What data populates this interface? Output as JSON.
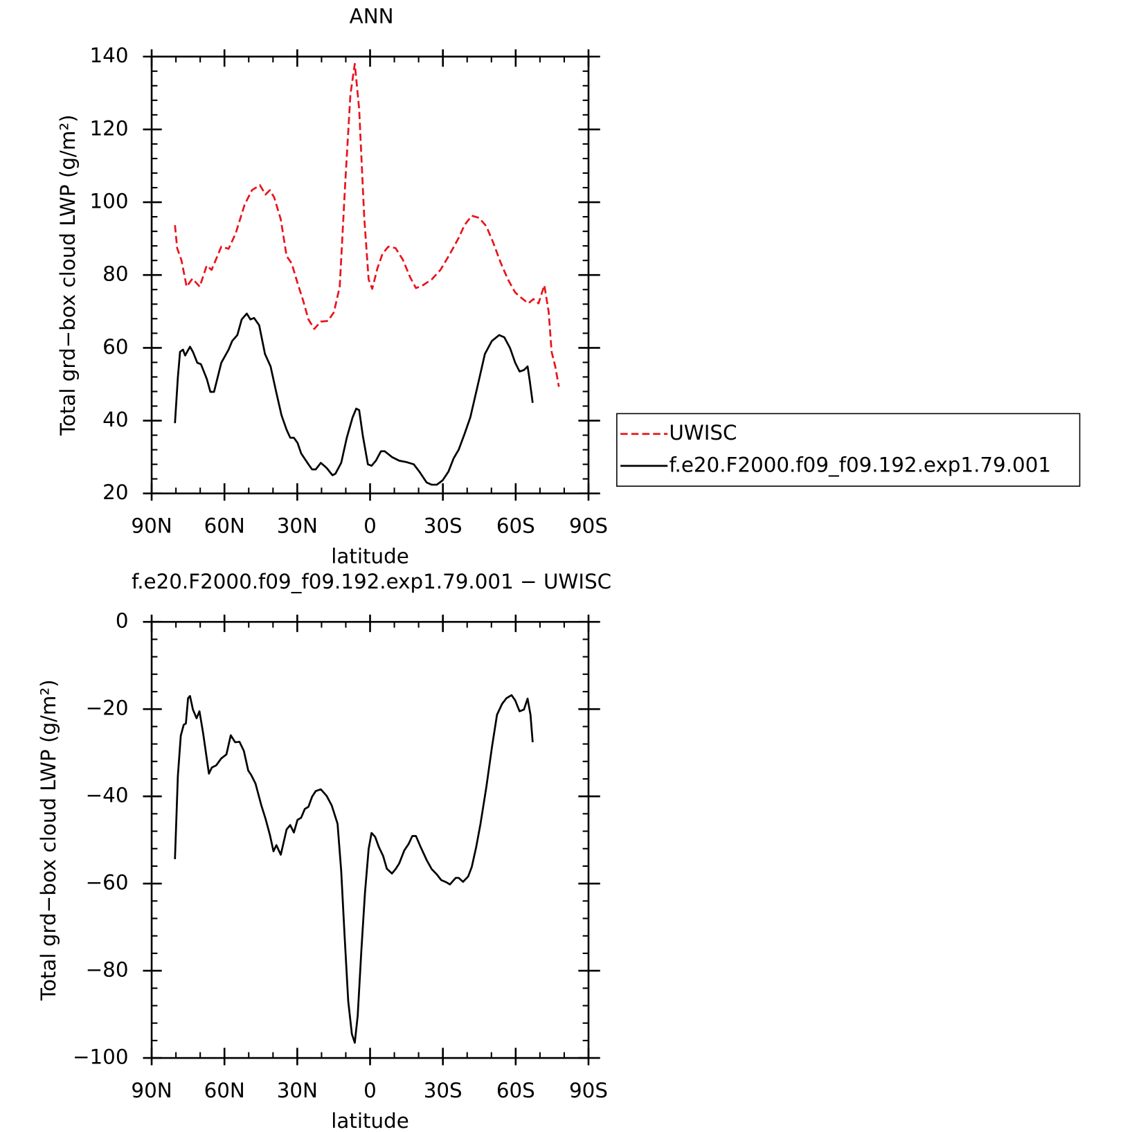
{
  "chart_data": [
    {
      "type": "line",
      "title": "ANN",
      "xlabel": "latitude",
      "ylabel": "Total grd−box cloud LWP (g/m²)",
      "xlim": [
        90,
        -90
      ],
      "xticks": [
        {
          "value": 90,
          "label": "90N"
        },
        {
          "value": 60,
          "label": "60N"
        },
        {
          "value": 30,
          "label": "30N"
        },
        0,
        {
          "value": -30,
          "label": "30S"
        },
        {
          "value": -60,
          "label": "60S"
        },
        {
          "value": -90,
          "label": "90S"
        }
      ],
      "ylim": [
        20,
        140
      ],
      "yticks": [
        20,
        40,
        60,
        80,
        100,
        120,
        140
      ],
      "legend": "outside-right",
      "series": [
        {
          "name": "UWISC",
          "color": "#e8141c",
          "dashed": true,
          "x": [
            80.4,
            79.5,
            77.7,
            75.6,
            73.2,
            70.2,
            67.3,
            65.3,
            61.3,
            58.3,
            55.4,
            51.7,
            48.7,
            45.4,
            43.1,
            41.3,
            39.5,
            36.8,
            34.4,
            32.3,
            29.9,
            27.5,
            25.4,
            23.0,
            20.3,
            17.3,
            14.9,
            12.5,
            10.2,
            8.1,
            6.3,
            4.5,
            2.4,
            0.6,
            -0.9,
            -3.0,
            -5.1,
            -7.5,
            -10.5,
            -13.5,
            -16.5,
            -18.9,
            -21.8,
            -25.4,
            -29.0,
            -32.9,
            -36.5,
            -38.9,
            -41.9,
            -44.9,
            -47.9,
            -50.8,
            -53.8,
            -56.8,
            -59.8,
            -62.2,
            -65.2,
            -67.3,
            -69.4,
            -71.8,
            -73.6,
            -74.8,
            -76.3,
            -77.8
          ],
          "values": [
            93.7,
            87.4,
            84,
            76.8,
            79,
            76.8,
            82.6,
            81.4,
            87.8,
            87.2,
            91.4,
            99.3,
            103.3,
            104.7,
            102.1,
            103.3,
            101.3,
            95.3,
            85.2,
            83.2,
            77.8,
            72.8,
            67.8,
            65.2,
            67.2,
            67.4,
            69.8,
            76.8,
            105.7,
            129.6,
            138,
            125.6,
            95.7,
            78.8,
            76.2,
            81.8,
            85.8,
            87.8,
            87.4,
            84.2,
            79.4,
            76.4,
            77.2,
            78.8,
            81.4,
            85.8,
            90.2,
            93.7,
            96.3,
            95.7,
            93.4,
            88.8,
            83.4,
            78.8,
            75.2,
            73.8,
            72.2,
            73.4,
            72.2,
            77.2,
            69.8,
            58.9,
            54.9,
            49.3
          ]
        },
        {
          "name": "f.e20.F2000.f09_f09.192.exp1.79.001",
          "color": "#000000",
          "dashed": false,
          "x": [
            80.4,
            79.2,
            78.3,
            77.1,
            76.2,
            74.2,
            73.0,
            71.2,
            69.7,
            67.3,
            65.8,
            64.3,
            62.8,
            61.3,
            58.3,
            56.8,
            54.7,
            52.9,
            50.8,
            49.3,
            47.8,
            45.7,
            43.3,
            41.0,
            38.9,
            36.5,
            34.4,
            32.9,
            31.4,
            29.9,
            28.4,
            25.4,
            23.9,
            22.4,
            20.3,
            17.9,
            15.5,
            14.3,
            11.9,
            9.6,
            7.2,
            5.7,
            4.5,
            3.0,
            0.9,
            -0.6,
            -2.4,
            -4.5,
            -6.0,
            -9.0,
            -12.0,
            -15.0,
            -18.0,
            -20.3,
            -23.3,
            -25.4,
            -27.5,
            -29.9,
            -32.3,
            -34.4,
            -36.5,
            -38.9,
            -41.3,
            -44.3,
            -47.3,
            -50.2,
            -53.2,
            -55.3,
            -57.7,
            -59.8,
            -61.6,
            -63.4,
            -64.9,
            -65.8,
            -67.0
          ],
          "values": [
            39.3,
            51.9,
            58.9,
            59.5,
            57.9,
            60.3,
            58.9,
            55.9,
            55.5,
            51.5,
            47.9,
            47.9,
            51.9,
            55.9,
            59.5,
            61.9,
            63.5,
            67.8,
            69.4,
            67.8,
            68.2,
            66.2,
            58.3,
            54.9,
            48.5,
            41.5,
            37.5,
            35.3,
            35.3,
            33.9,
            31.0,
            28.0,
            26.6,
            26.6,
            28.4,
            27.0,
            25.0,
            25.4,
            28.4,
            35.3,
            40.9,
            43.3,
            42.9,
            35.9,
            28.0,
            27.6,
            29.0,
            31.6,
            31.6,
            30.0,
            29.0,
            28.6,
            28.0,
            26.0,
            23.0,
            22.4,
            22.4,
            23.6,
            26.0,
            29.6,
            32.0,
            36.3,
            40.9,
            49.5,
            58.3,
            61.9,
            63.5,
            62.9,
            59.9,
            55.9,
            53.5,
            53.9,
            54.9,
            50.9,
            44.9
          ]
        }
      ]
    },
    {
      "type": "line",
      "title": "f.e20.F2000.f09_f09.192.exp1.79.001 − UWISC",
      "xlabel": "latitude",
      "ylabel": "Total grd−box cloud LWP (g/m²)",
      "xlim": [
        90,
        -90
      ],
      "xticks": [
        {
          "value": 90,
          "label": "90N"
        },
        {
          "value": 60,
          "label": "60N"
        },
        {
          "value": 30,
          "label": "30N"
        },
        0,
        {
          "value": -30,
          "label": "30S"
        },
        {
          "value": -60,
          "label": "60S"
        },
        {
          "value": -90,
          "label": "90S"
        }
      ],
      "ylim": [
        -100,
        0
      ],
      "yticks": [
        {
          "value": -100,
          "label": "−100"
        },
        {
          "value": -80,
          "label": "−80"
        },
        {
          "value": -60,
          "label": "−60"
        },
        {
          "value": -40,
          "label": "−40"
        },
        {
          "value": -20,
          "label": "−20"
        },
        0
      ],
      "series": [
        {
          "color": "#000000",
          "dashed": false,
          "x": [
            80.4,
            79.2,
            78.0,
            76.8,
            75.9,
            75.0,
            74.2,
            73.0,
            71.5,
            70.3,
            68.8,
            66.4,
            65.2,
            63.4,
            61.3,
            59.2,
            57.4,
            55.6,
            53.8,
            52.0,
            50.2,
            49.0,
            47.2,
            44.8,
            43.1,
            41.3,
            39.8,
            38.6,
            36.8,
            34.4,
            32.9,
            31.4,
            29.9,
            28.4,
            26.9,
            25.4,
            23.9,
            22.4,
            20.3,
            17.9,
            15.8,
            13.4,
            11.9,
            10.5,
            9.0,
            7.5,
            6.3,
            5.1,
            3.6,
            2.1,
            0.6,
            -0.6,
            -2.1,
            -3.6,
            -5.4,
            -6.9,
            -9.0,
            -10.5,
            -12.0,
            -14.1,
            -15.9,
            -17.4,
            -18.9,
            -20.9,
            -23.3,
            -25.4,
            -27.5,
            -29.3,
            -31.4,
            -32.9,
            -35.3,
            -36.5,
            -38.3,
            -40.4,
            -41.9,
            -43.7,
            -45.5,
            -47.9,
            -50.2,
            -52.3,
            -54.4,
            -56.2,
            -58.3,
            -59.8,
            -61.6,
            -63.4,
            -64.9,
            -66.1,
            -67.0
          ],
          "values": [
            -54.4,
            -35.3,
            -26.1,
            -23.6,
            -23.3,
            -17.5,
            -17.0,
            -20.1,
            -22.1,
            -20.5,
            -25.5,
            -34.8,
            -33.4,
            -32.9,
            -31.3,
            -30.4,
            -26.0,
            -27.6,
            -27.5,
            -29.6,
            -34.1,
            -35.1,
            -37.1,
            -42.1,
            -45.1,
            -48.8,
            -52.6,
            -51.2,
            -53.4,
            -47.6,
            -46.6,
            -48.3,
            -45.4,
            -44.9,
            -42.9,
            -42.4,
            -40.1,
            -38.8,
            -38.4,
            -39.9,
            -42.1,
            -46.3,
            -57.1,
            -72.0,
            -87.0,
            -94.5,
            -96.5,
            -90.3,
            -75.4,
            -62.1,
            -52.1,
            -48.4,
            -49.3,
            -51.6,
            -53.7,
            -56.6,
            -57.7,
            -56.7,
            -55.4,
            -52.4,
            -50.9,
            -49.1,
            -49.1,
            -51.7,
            -54.6,
            -56.7,
            -57.9,
            -59.2,
            -59.7,
            -60.2,
            -58.7,
            -58.7,
            -59.6,
            -58.4,
            -56.2,
            -51.7,
            -46.3,
            -37.9,
            -28.8,
            -21.3,
            -18.8,
            -17.5,
            -16.8,
            -18.0,
            -20.5,
            -20.1,
            -17.6,
            -21.3,
            -27.6
          ]
        }
      ]
    }
  ]
}
